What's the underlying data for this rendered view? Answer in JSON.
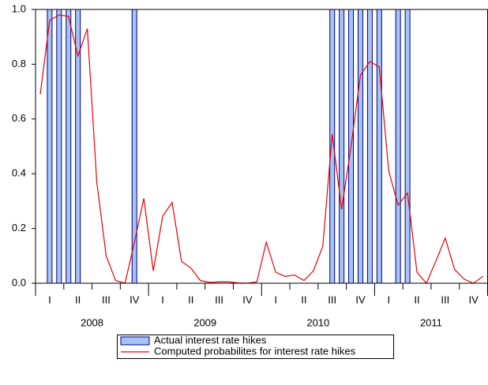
{
  "chart_data": {
    "type": "bar-line",
    "categories": [
      null,
      "I",
      null,
      null,
      "II",
      null,
      null,
      "III",
      null,
      null,
      "IV",
      null,
      null,
      "I",
      null,
      null,
      "II",
      null,
      null,
      "III",
      null,
      null,
      "IV",
      null,
      null,
      "I",
      null,
      null,
      "II",
      null,
      null,
      "III",
      null,
      null,
      "IV",
      null,
      null,
      "I",
      null,
      null,
      "II",
      null,
      null,
      "III",
      null,
      null,
      "IV",
      null
    ],
    "x_groups": [
      "2008",
      "2009",
      "2010",
      "2011"
    ],
    "series": [
      {
        "name": "Actual interest rate hikes",
        "color": "#a6c4f2",
        "type": "bar",
        "values": [
          0,
          1,
          1,
          1,
          1,
          0,
          0,
          0,
          0,
          0,
          1,
          0,
          0,
          0,
          0,
          0,
          0,
          0,
          0,
          0,
          0,
          0,
          0,
          0,
          0,
          0,
          0,
          0,
          0,
          0,
          0,
          1,
          1,
          1,
          1,
          1,
          1,
          0,
          1,
          1,
          0,
          0,
          0,
          0,
          0,
          0,
          0,
          0
        ]
      },
      {
        "name": "Computed probabilites for interest rate hikes",
        "color": "#e8000b",
        "type": "line",
        "values": [
          0.69,
          0.96,
          0.98,
          0.975,
          0.83,
          0.93,
          0.37,
          0.1,
          0.01,
          0.0,
          0.15,
          0.31,
          0.045,
          0.245,
          0.295,
          0.08,
          0.055,
          0.01,
          0.003,
          0.005,
          0.005,
          0.001,
          0.0,
          0.005,
          0.15,
          0.04,
          0.025,
          0.03,
          0.01,
          0.045,
          0.135,
          0.545,
          0.27,
          0.5,
          0.76,
          0.81,
          0.79,
          0.41,
          0.285,
          0.33,
          0.04,
          0.0,
          0.08,
          0.165,
          0.05,
          0.015,
          0.0,
          0.025
        ]
      }
    ],
    "ylim": [
      0,
      1
    ],
    "yticks": [
      {
        "value": 0,
        "label": "0.0"
      },
      {
        "value": 0.2,
        "label": "0.2"
      },
      {
        "value": 0.4,
        "label": "0.4"
      },
      {
        "value": 0.6,
        "label": "0.6"
      },
      {
        "value": 0.8,
        "label": "0.8"
      },
      {
        "value": 1,
        "label": "1.0"
      }
    ]
  }
}
